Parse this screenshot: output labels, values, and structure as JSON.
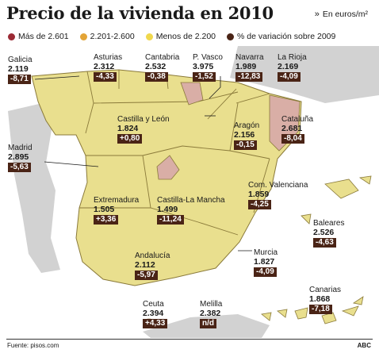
{
  "title": "Precio de la vivienda en 2010",
  "unit": "En euros/m²",
  "legend": [
    {
      "label": "Más de 2.601",
      "color": "#9b2a35"
    },
    {
      "label": "2.201-2.600",
      "color": "#e3a437"
    },
    {
      "label": "Menos de 2.200",
      "color": "#f0d84d"
    },
    {
      "label": "% de variación sobre 2009",
      "color": "#4a2416"
    }
  ],
  "colors": {
    "land_low": "#e9df8e",
    "land_high": "#d9aea6",
    "neighbors": "#d2d2d2",
    "sea": "#ffffff",
    "label_box": "#4a2416"
  },
  "regions": [
    {
      "name": "Galicia",
      "price": "2.119",
      "var": "-8,71"
    },
    {
      "name": "Asturias",
      "price": "2.312",
      "var": "-4,33"
    },
    {
      "name": "Cantabria",
      "price": "2.532",
      "var": "-0,38"
    },
    {
      "name": "P. Vasco",
      "price": "3.975",
      "var": "-1,52"
    },
    {
      "name": "Navarra",
      "price": "1.989",
      "var": "-12,83"
    },
    {
      "name": "La Rioja",
      "price": "2.169",
      "var": "-4,09"
    },
    {
      "name": "Castilla y León",
      "price": "1.824",
      "var": "+0,80"
    },
    {
      "name": "Aragón",
      "price": "2.156",
      "var": "-0,15"
    },
    {
      "name": "Cataluña",
      "price": "2.681",
      "var": "-8,04"
    },
    {
      "name": "Madrid",
      "price": "2.895",
      "var": "-5,63"
    },
    {
      "name": "Com. Valenciana",
      "price": "1.859",
      "var": "-4,25"
    },
    {
      "name": "Extremadura",
      "price": "1.505",
      "var": "+3,36"
    },
    {
      "name": "Castilla-La Mancha",
      "price": "1.499",
      "var": "-11,24"
    },
    {
      "name": "Baleares",
      "price": "2.526",
      "var": "-4,63"
    },
    {
      "name": "Andalucía",
      "price": "2.112",
      "var": "-5,97"
    },
    {
      "name": "Murcia",
      "price": "1.827",
      "var": "-4,09"
    },
    {
      "name": "Canarias",
      "price": "1.868",
      "var": "-7,18"
    },
    {
      "name": "Ceuta",
      "price": "2.394",
      "var": "+4,33"
    },
    {
      "name": "Melilla",
      "price": "2.382",
      "var": "n/d"
    }
  ],
  "footer": {
    "source": "Fuente: pisos.com",
    "credit": "ABC"
  }
}
